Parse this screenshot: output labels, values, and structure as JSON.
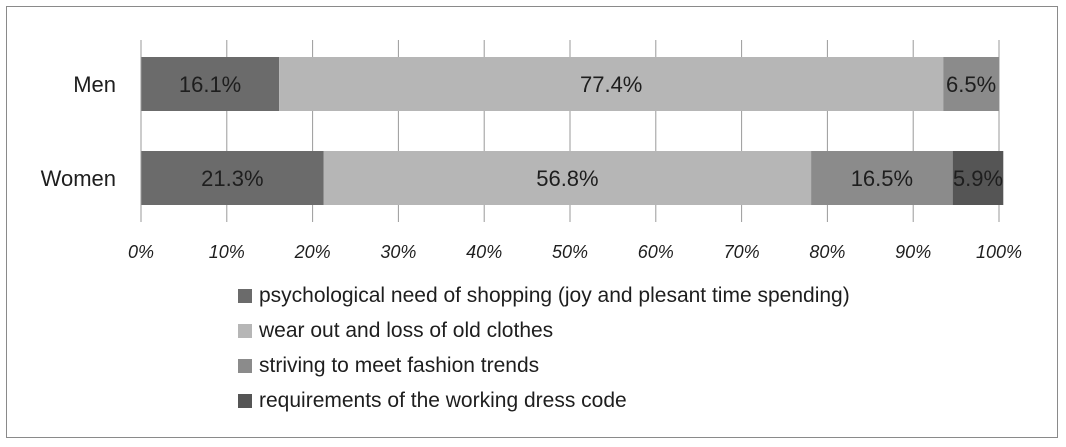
{
  "chart_data": {
    "type": "bar",
    "orientation": "horizontal",
    "stacked": true,
    "categories": [
      "Men",
      "Women"
    ],
    "series": [
      {
        "name": "psychological need of shopping (joy and plesant time spending)",
        "color": "#6b6b6b",
        "values": [
          16.1,
          21.3
        ],
        "labels": [
          "16.1%",
          "21.3%"
        ]
      },
      {
        "name": "wear out and loss of old clothes",
        "color": "#b6b6b6",
        "values": [
          77.4,
          56.8
        ],
        "labels": [
          "77.4%",
          "56.8%"
        ]
      },
      {
        "name": "striving to meet fashion trends",
        "color": "#8b8b8b",
        "values": [
          6.5,
          16.5
        ],
        "labels": [
          "6.5%",
          "16.5%"
        ]
      },
      {
        "name": "requirements of the working dress code",
        "color": "#555555",
        "values": [
          0,
          5.9
        ],
        "labels": [
          "",
          "5.9%"
        ]
      }
    ],
    "xlim": [
      0,
      100
    ],
    "xticks": [
      "0%",
      "10%",
      "20%",
      "30%",
      "40%",
      "50%",
      "60%",
      "70%",
      "80%",
      "90%",
      "100%"
    ],
    "grid": true,
    "legend_position": "bottom"
  }
}
